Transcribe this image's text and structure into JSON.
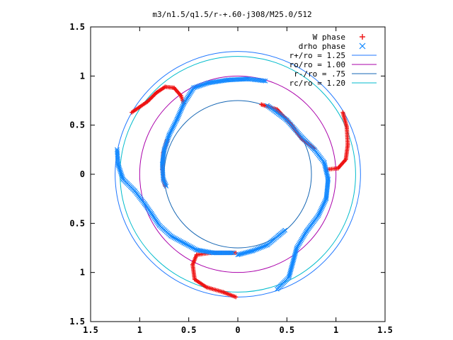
{
  "chart_data": {
    "type": "scatter",
    "title": "m3/n1.5/q1.5/r-+.60-j308/M25.0/512",
    "xlim": [
      -1.5,
      1.5
    ],
    "ylim": [
      -1.5,
      1.5
    ],
    "x_ticks": [
      -1.5,
      -1,
      -0.5,
      0,
      0.5,
      1,
      1.5
    ],
    "y_ticks": [
      1.5,
      1,
      0.5,
      0,
      -0.5,
      -1,
      -1.5
    ],
    "x_tick_labels": [
      "1.5",
      "1",
      "0.5",
      "0",
      "0.5",
      "1",
      "1.5"
    ],
    "y_tick_labels": [
      "1.5",
      "1",
      "0.5",
      "0",
      "0.5",
      "1",
      "1.5"
    ],
    "grid": false,
    "legend_position": "top-right",
    "circles": [
      {
        "name": "r+/ro = 1.25",
        "radius": 1.25,
        "color": "#1f77ff"
      },
      {
        "name": "ro/ro = 1.00",
        "radius": 1.0,
        "color": "#aa00aa"
      },
      {
        "name": "r-/ro = .75",
        "radius": 0.75,
        "color": "#1566b4"
      },
      {
        "name": "rc/ro = 1.20",
        "radius": 1.2,
        "color": "#00bbcc"
      }
    ],
    "series": [
      {
        "name": "W phase",
        "marker": "plus",
        "color": "#ee1111",
        "arms": [
          [
            [
              -1.08,
              0.63
            ],
            [
              -0.92,
              0.74
            ],
            [
              -0.83,
              0.83
            ],
            [
              -0.74,
              0.89
            ],
            [
              -0.65,
              0.88
            ],
            [
              -0.58,
              0.8
            ],
            [
              -0.55,
              0.72
            ]
          ],
          [
            [
              -0.72,
              0.35
            ],
            [
              -0.76,
              0.22
            ],
            [
              -0.77,
              0.05
            ],
            [
              -0.76,
              -0.05
            ],
            [
              -0.74,
              -0.12
            ]
          ],
          [
            [
              1.07,
              0.63
            ],
            [
              1.11,
              0.48
            ],
            [
              1.12,
              0.3
            ],
            [
              1.1,
              0.15
            ],
            [
              1.02,
              0.06
            ],
            [
              0.92,
              0.05
            ]
          ],
          [
            [
              -0.02,
              -0.8
            ],
            [
              -0.28,
              -0.8
            ],
            [
              -0.42,
              -0.82
            ],
            [
              -0.46,
              -0.92
            ],
            [
              -0.44,
              -1.07
            ],
            [
              -0.32,
              -1.15
            ],
            [
              -0.15,
              -1.2
            ],
            [
              -0.02,
              -1.25
            ]
          ],
          [
            [
              0.24,
              0.71
            ],
            [
              0.4,
              0.66
            ],
            [
              0.55,
              0.5
            ],
            [
              0.65,
              0.36
            ],
            [
              0.78,
              0.26
            ]
          ]
        ]
      },
      {
        "name": "drho phase",
        "marker": "cross",
        "color": "#1188ff",
        "arms": [
          [
            [
              -0.55,
              0.72
            ],
            [
              -0.45,
              0.88
            ],
            [
              -0.3,
              0.93
            ],
            [
              -0.1,
              0.96
            ],
            [
              0.1,
              0.97
            ],
            [
              0.28,
              0.95
            ]
          ],
          [
            [
              -0.55,
              0.72
            ],
            [
              -0.62,
              0.56
            ],
            [
              -0.7,
              0.4
            ],
            [
              -0.75,
              0.25
            ],
            [
              -0.77,
              0.1
            ],
            [
              -0.76,
              -0.05
            ],
            [
              -0.73,
              -0.12
            ]
          ],
          [
            [
              -1.23,
              0.25
            ],
            [
              -1.22,
              0.1
            ],
            [
              -1.17,
              -0.05
            ],
            [
              -1.05,
              -0.17
            ],
            [
              -0.95,
              -0.3
            ],
            [
              -0.88,
              -0.4
            ],
            [
              -0.8,
              -0.52
            ],
            [
              -0.68,
              -0.63
            ],
            [
              -0.55,
              -0.7
            ],
            [
              -0.42,
              -0.77
            ],
            [
              -0.25,
              -0.8
            ],
            [
              -0.05,
              -0.8
            ]
          ],
          [
            [
              0.3,
              0.7
            ],
            [
              0.5,
              0.55
            ],
            [
              0.65,
              0.38
            ],
            [
              0.78,
              0.25
            ],
            [
              0.88,
              0.12
            ],
            [
              0.92,
              -0.05
            ],
            [
              0.9,
              -0.25
            ],
            [
              0.82,
              -0.42
            ],
            [
              0.7,
              -0.58
            ],
            [
              0.6,
              -0.75
            ],
            [
              0.52,
              -1.05
            ],
            [
              0.4,
              -1.17
            ]
          ],
          [
            [
              0.0,
              -0.82
            ],
            [
              0.15,
              -0.78
            ],
            [
              0.3,
              -0.72
            ],
            [
              0.42,
              -0.62
            ],
            [
              0.48,
              -0.57
            ]
          ]
        ]
      }
    ]
  }
}
